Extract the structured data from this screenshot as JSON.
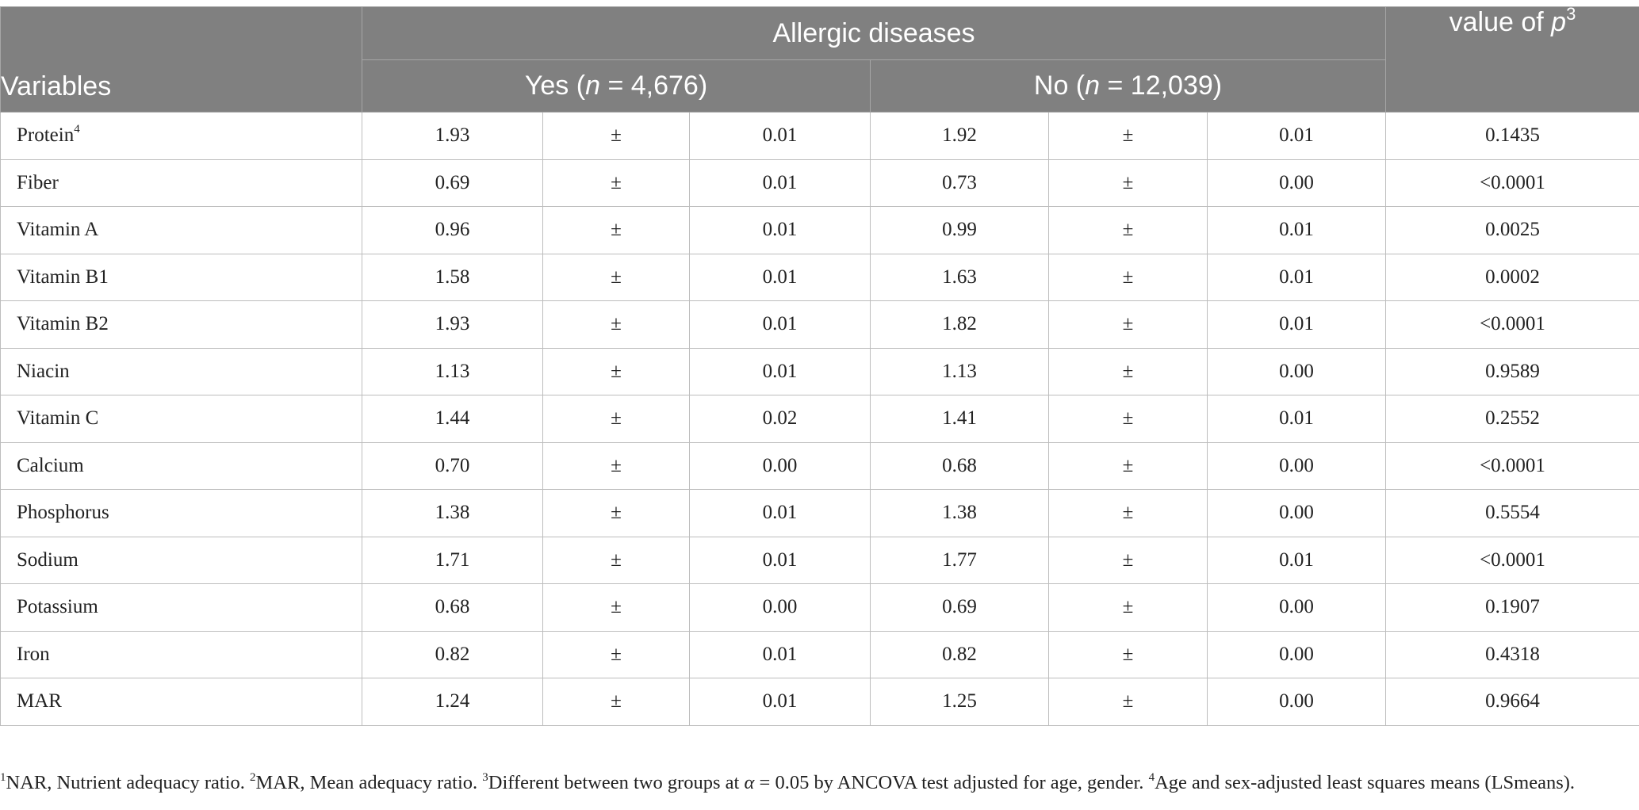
{
  "header": {
    "variables": "Variables",
    "group": "Allergic diseases",
    "p_label": "value of ",
    "p_symbol": "p",
    "p_sup": "3",
    "yes_pre": "Yes (",
    "yes_n": "n",
    "yes_post": " = 4,676)",
    "no_pre": "No (",
    "no_n": "n",
    "no_post": " = 12,039)"
  },
  "rows": [
    {
      "variable": "Protein",
      "sup": "4",
      "yes_mean": "1.93",
      "yes_pm": "±",
      "yes_se": "0.01",
      "no_mean": "1.92",
      "no_pm": "±",
      "no_se": "0.01",
      "p": "0.1435"
    },
    {
      "variable": "Fiber",
      "yes_mean": "0.69",
      "yes_pm": "±",
      "yes_se": "0.01",
      "no_mean": "0.73",
      "no_pm": "±",
      "no_se": "0.00",
      "p": "<0.0001"
    },
    {
      "variable": "Vitamin A",
      "yes_mean": "0.96",
      "yes_pm": "±",
      "yes_se": "0.01",
      "no_mean": "0.99",
      "no_pm": "±",
      "no_se": "0.01",
      "p": "0.0025"
    },
    {
      "variable": "Vitamin B1",
      "yes_mean": "1.58",
      "yes_pm": "±",
      "yes_se": "0.01",
      "no_mean": "1.63",
      "no_pm": "±",
      "no_se": "0.01",
      "p": "0.0002"
    },
    {
      "variable": "Vitamin B2",
      "yes_mean": "1.93",
      "yes_pm": "±",
      "yes_se": "0.01",
      "no_mean": "1.82",
      "no_pm": "±",
      "no_se": "0.01",
      "p": "<0.0001"
    },
    {
      "variable": "Niacin",
      "yes_mean": "1.13",
      "yes_pm": "±",
      "yes_se": "0.01",
      "no_mean": "1.13",
      "no_pm": "±",
      "no_se": "0.00",
      "p": "0.9589"
    },
    {
      "variable": "Vitamin C",
      "yes_mean": "1.44",
      "yes_pm": "±",
      "yes_se": "0.02",
      "no_mean": "1.41",
      "no_pm": "±",
      "no_se": "0.01",
      "p": "0.2552"
    },
    {
      "variable": "Calcium",
      "yes_mean": "0.70",
      "yes_pm": "±",
      "yes_se": "0.00",
      "no_mean": "0.68",
      "no_pm": "±",
      "no_se": "0.00",
      "p": "<0.0001"
    },
    {
      "variable": "Phosphorus",
      "yes_mean": "1.38",
      "yes_pm": "±",
      "yes_se": "0.01",
      "no_mean": "1.38",
      "no_pm": "±",
      "no_se": "0.00",
      "p": "0.5554"
    },
    {
      "variable": "Sodium",
      "yes_mean": "1.71",
      "yes_pm": "±",
      "yes_se": "0.01",
      "no_mean": "1.77",
      "no_pm": "±",
      "no_se": "0.01",
      "p": "<0.0001"
    },
    {
      "variable": "Potassium",
      "yes_mean": "0.68",
      "yes_pm": "±",
      "yes_se": "0.00",
      "no_mean": "0.69",
      "no_pm": "±",
      "no_se": "0.00",
      "p": "0.1907"
    },
    {
      "variable": "Iron",
      "yes_mean": "0.82",
      "yes_pm": "±",
      "yes_se": "0.01",
      "no_mean": "0.82",
      "no_pm": "±",
      "no_se": "0.00",
      "p": "0.4318"
    },
    {
      "variable": "MAR",
      "yes_mean": "1.24",
      "yes_pm": "±",
      "yes_se": "0.01",
      "no_mean": "1.25",
      "no_pm": "±",
      "no_se": "0.00",
      "p": "0.9664"
    }
  ],
  "footnote": {
    "n1_sup": "1",
    "n1": "NAR, Nutrient adequacy ratio. ",
    "n2_sup": "2",
    "n2": "MAR, Mean adequacy ratio. ",
    "n3_sup": "3",
    "n3_pre": "Different between two groups at ",
    "n3_alpha": "α",
    "n3_post": " = 0.05 by ANCOVA test adjusted for age, gender. ",
    "n4_sup": "4",
    "n4": "Age and sex-adjusted least squares means (LSmeans)."
  }
}
